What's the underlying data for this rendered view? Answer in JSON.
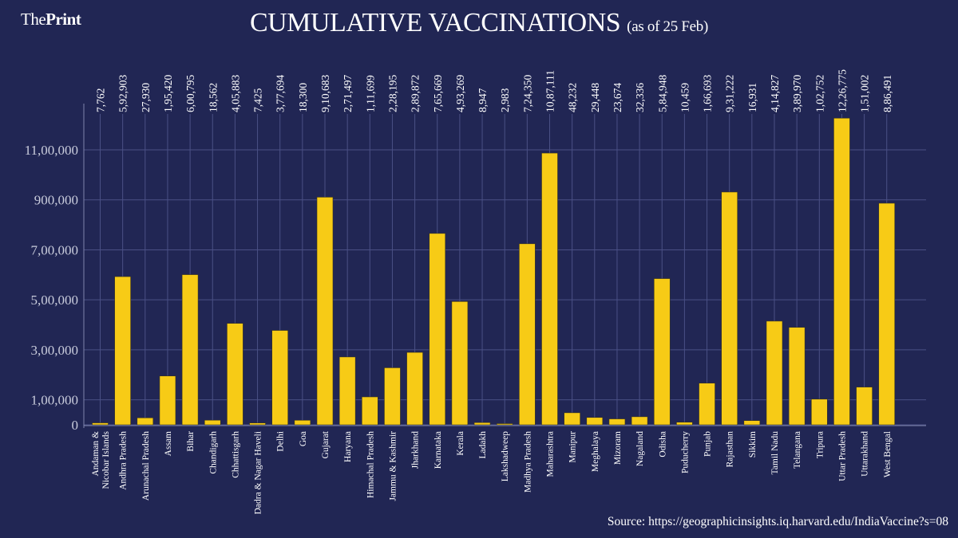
{
  "header": {
    "logo_light": "The",
    "logo_bold": "Print",
    "title": "CUMULATIVE VACCINATIONS",
    "subtitle": "(as of 25 Feb)"
  },
  "footer": {
    "source": "Source: https://geographicinsights.iq.harvard.edu/IndiaVaccine?s=08"
  },
  "colors": {
    "background": "#212654",
    "bar": "#f7cb16",
    "grid": "#4a5085",
    "text": "#ffffff"
  },
  "chart_data": {
    "type": "bar",
    "title": "CUMULATIVE VACCINATIONS (as of 25 Feb)",
    "xlabel": "",
    "ylabel": "",
    "ylim": [
      0,
      1250000
    ],
    "grid": true,
    "legend": "none",
    "yticks": [
      0,
      100000,
      300000,
      500000,
      700000,
      900000,
      1100000
    ],
    "ytick_labels": [
      "0",
      "1,00,000",
      "3,00,000",
      "5,00,000",
      "7,00,000",
      "900,000",
      "11,00,000"
    ],
    "categories": [
      "Andaman & Nicobar Islands",
      "Andhra Pradesh",
      "Arunachal Pradesh",
      "Assam",
      "Bihar",
      "Chandigarh",
      "Chhattisgarh",
      "Dadra & Nagar Haveli",
      "Delhi",
      "Goa",
      "Gujarat",
      "Haryana",
      "Himachal Pradesh",
      "Jammu & Kashmir",
      "Jharkhand",
      "Karnataka",
      "Kerala",
      "Ladakh",
      "Lakshadweep",
      "Madhya Pradesh",
      "Maharashtra",
      "Manipur",
      "Meghalaya",
      "Mizoram",
      "Nagaland",
      "Odisha",
      "Puducherry",
      "Punjab",
      "Rajasthan",
      "Sikkim",
      "Tamil Nadu",
      "Telangana",
      "Tripura",
      "Uttar Pradesh",
      "Uttarakhand",
      "West Bengal"
    ],
    "category_lines": [
      [
        "Andaman &",
        "Nicobar Islands"
      ],
      [
        "Andhra Pradesh"
      ],
      [
        "Arunachal Pradesh"
      ],
      [
        "Assam"
      ],
      [
        "Bihar"
      ],
      [
        "Chandigarh"
      ],
      [
        "Chhattisgarh"
      ],
      [
        "Dadra & Nagar Haveli"
      ],
      [
        "Delhi"
      ],
      [
        "Goa"
      ],
      [
        "Gujarat"
      ],
      [
        "Haryana"
      ],
      [
        "Himachal Pradesh"
      ],
      [
        "Jammu & Kashmir"
      ],
      [
        "Jharkhand"
      ],
      [
        "Karnataka"
      ],
      [
        "Kerala"
      ],
      [
        "Ladakh"
      ],
      [
        "Lakshadweep"
      ],
      [
        "Madhya Pradesh"
      ],
      [
        "Maharashtra"
      ],
      [
        "Manipur"
      ],
      [
        "Meghalaya"
      ],
      [
        "Mizoram"
      ],
      [
        "Nagaland"
      ],
      [
        "Odisha"
      ],
      [
        "Puducherry"
      ],
      [
        "Punjab"
      ],
      [
        "Rajasthan"
      ],
      [
        "Sikkim"
      ],
      [
        "Tamil Nadu"
      ],
      [
        "Telangana"
      ],
      [
        "Tripura"
      ],
      [
        "Uttar Pradesh"
      ],
      [
        "Uttarakhand"
      ],
      [
        "West Bengal"
      ]
    ],
    "values": [
      7762,
      592903,
      27930,
      195420,
      600795,
      18562,
      405883,
      7425,
      377694,
      18300,
      910683,
      271497,
      111699,
      228195,
      289872,
      765669,
      493269,
      8947,
      2983,
      724350,
      1087111,
      48232,
      29448,
      23674,
      32336,
      584948,
      10459,
      166693,
      931222,
      16931,
      414827,
      389970,
      102752,
      1226775,
      151002,
      886491
    ],
    "value_labels": [
      "7,762",
      "5,92,903",
      "27,930",
      "1,95,420",
      "6,00,795",
      "18,562",
      "4,05,883",
      "7,425",
      "3,77,694",
      "18,300",
      "9,10,683",
      "2,71,497",
      "1,11,699",
      "2,28,195",
      "2,89,872",
      "7,65,669",
      "4,93,269",
      "8,947",
      "2,983",
      "7,24,350",
      "10,87,111",
      "48,232",
      "29,448",
      "23,674",
      "32,336",
      "5,84,948",
      "10,459",
      "1,66,693",
      "9,31,222",
      "16,931",
      "4,14,827",
      "3,89,970",
      "1,02,752",
      "12,26,775",
      "1,51,002",
      "8,86,491"
    ]
  }
}
